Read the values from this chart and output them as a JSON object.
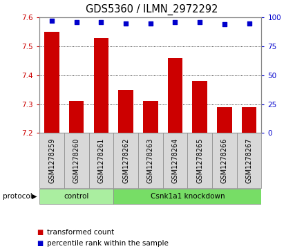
{
  "title": "GDS5360 / ILMN_2972292",
  "samples": [
    "GSM1278259",
    "GSM1278260",
    "GSM1278261",
    "GSM1278262",
    "GSM1278263",
    "GSM1278264",
    "GSM1278265",
    "GSM1278266",
    "GSM1278267"
  ],
  "bar_values": [
    7.55,
    7.31,
    7.53,
    7.35,
    7.31,
    7.46,
    7.38,
    7.29,
    7.29
  ],
  "percentile_values": [
    97,
    96,
    96,
    95,
    95,
    96,
    96,
    94,
    95
  ],
  "ylim_left": [
    7.2,
    7.6
  ],
  "ylim_right": [
    0,
    100
  ],
  "yticks_left": [
    7.2,
    7.3,
    7.4,
    7.5,
    7.6
  ],
  "yticks_right": [
    0,
    25,
    50,
    75,
    100
  ],
  "bar_color": "#cc0000",
  "dot_color": "#0000cc",
  "bar_bottom": 7.2,
  "groups": [
    {
      "label": "control",
      "start": 0,
      "end": 3,
      "color": "#aaeea0"
    },
    {
      "label": "Csnk1a1 knockdown",
      "start": 3,
      "end": 9,
      "color": "#77dd66"
    }
  ],
  "legend_items": [
    {
      "label": "transformed count",
      "color": "#cc0000"
    },
    {
      "label": "percentile rank within the sample",
      "color": "#0000cc"
    }
  ],
  "protocol_label": "protocol",
  "label_bg_color": "#d8d8d8",
  "plot_bg": "#ffffff",
  "tick_color_left": "#cc0000",
  "tick_color_right": "#0000cc",
  "spine_color": "#888888"
}
